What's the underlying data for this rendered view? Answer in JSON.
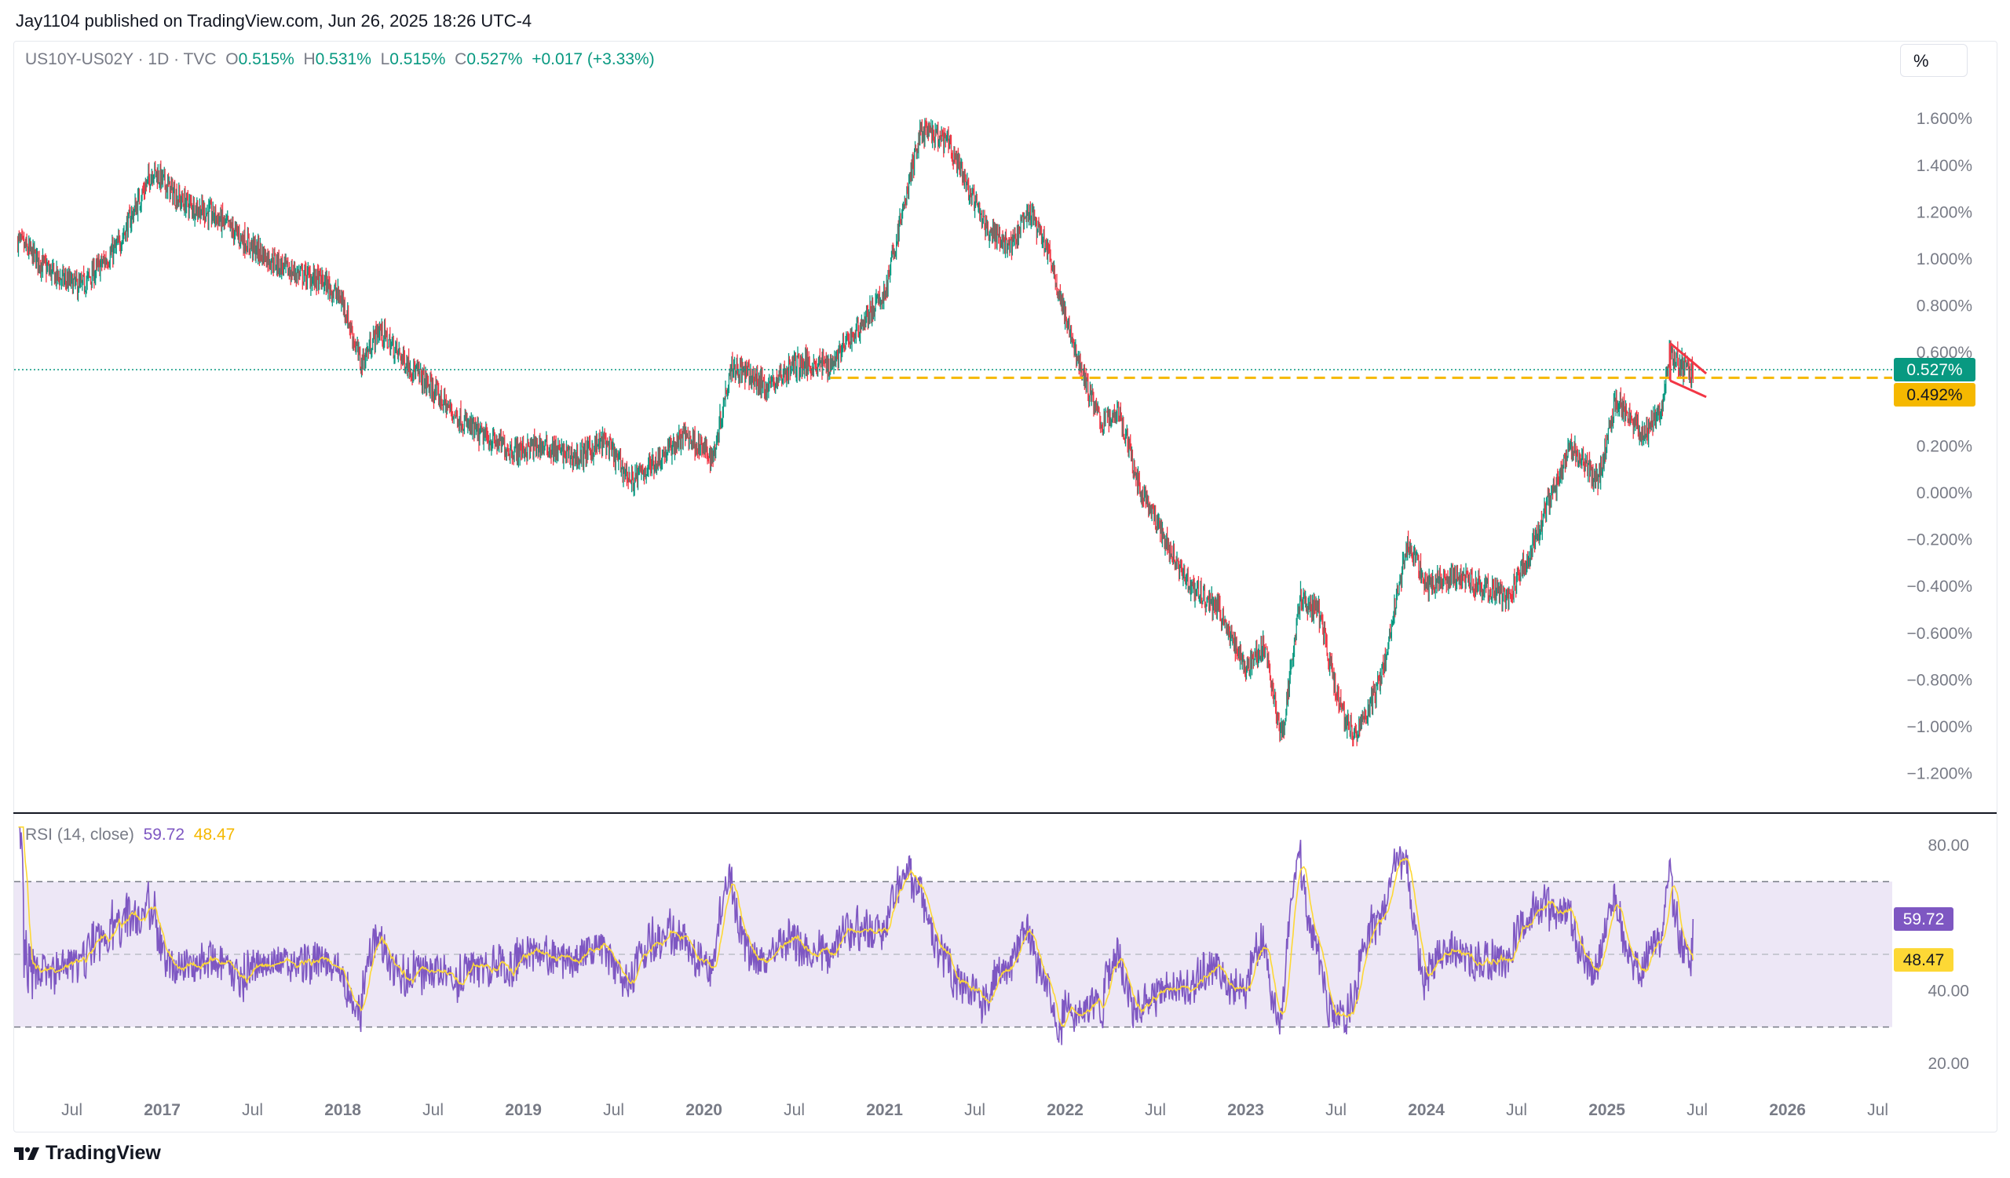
{
  "header": {
    "publisher": "Jay1104 published on TradingView.com, Jun 26, 2025 18:26 UTC-4"
  },
  "legend": {
    "symbol": "US10Y-US02Y · 1D · TVC",
    "o_label": "O",
    "o_value": "0.515%",
    "h_label": "H",
    "h_value": "0.531%",
    "l_label": "L",
    "l_value": "0.515%",
    "c_label": "C",
    "c_value": "0.527%",
    "change": "+0.017 (+3.33%)"
  },
  "scale_button": "%",
  "rsi_legend": {
    "label": "RSI (14, close)",
    "rsi_value": "59.72",
    "ma_value": "48.47"
  },
  "footer": {
    "brand": "TradingView"
  },
  "colors": {
    "up": "#089981",
    "down": "#f23645",
    "rsi": "#7e57c2",
    "rsi_ma": "#fdd835",
    "support": "#f5b800",
    "triangle": "#f23645",
    "rsi_band": "#ede7f6"
  },
  "chart_data": [
    {
      "type": "candlestick",
      "title": "US10Y-US02Y · 1D · TVC",
      "unit": "%",
      "ylim": [
        -1.3,
        1.75
      ],
      "y_ticks": [
        "1.600%",
        "1.400%",
        "1.200%",
        "1.000%",
        "0.800%",
        "0.600%",
        "0.200%",
        "0.000%",
        "−0.200%",
        "−0.400%",
        "−0.600%",
        "−0.800%",
        "−1.000%",
        "−1.200%"
      ],
      "y_tick_values": [
        1.6,
        1.4,
        1.2,
        1.0,
        0.8,
        0.6,
        0.2,
        0.0,
        -0.2,
        -0.4,
        -0.6,
        -0.8,
        -1.0,
        -1.2
      ],
      "x_ticks": [
        {
          "label": "Jul",
          "bold": false,
          "t": 2016.5
        },
        {
          "label": "2017",
          "bold": true,
          "t": 2017.0
        },
        {
          "label": "Jul",
          "bold": false,
          "t": 2017.5
        },
        {
          "label": "2018",
          "bold": true,
          "t": 2018.0
        },
        {
          "label": "Jul",
          "bold": false,
          "t": 2018.5
        },
        {
          "label": "2019",
          "bold": true,
          "t": 2019.0
        },
        {
          "label": "Jul",
          "bold": false,
          "t": 2019.5
        },
        {
          "label": "2020",
          "bold": true,
          "t": 2020.0
        },
        {
          "label": "Jul",
          "bold": false,
          "t": 2020.5
        },
        {
          "label": "2021",
          "bold": true,
          "t": 2021.0
        },
        {
          "label": "Jul",
          "bold": false,
          "t": 2021.5
        },
        {
          "label": "2022",
          "bold": true,
          "t": 2022.0
        },
        {
          "label": "Jul",
          "bold": false,
          "t": 2022.5
        },
        {
          "label": "2023",
          "bold": true,
          "t": 2023.0
        },
        {
          "label": "Jul",
          "bold": false,
          "t": 2023.5
        },
        {
          "label": "2024",
          "bold": true,
          "t": 2024.0
        },
        {
          "label": "Jul",
          "bold": false,
          "t": 2024.5
        },
        {
          "label": "2025",
          "bold": true,
          "t": 2025.0
        },
        {
          "label": "Jul",
          "bold": false,
          "t": 2025.5
        },
        {
          "label": "2026",
          "bold": true,
          "t": 2026.0
        },
        {
          "label": "Jul",
          "bold": false,
          "t": 2026.5
        }
      ],
      "x_range": [
        2016.18,
        2026.58
      ],
      "path_points": [
        [
          2016.2,
          1.08
        ],
        [
          2016.4,
          0.93
        ],
        [
          2016.55,
          0.88
        ],
        [
          2016.75,
          1.05
        ],
        [
          2016.95,
          1.38
        ],
        [
          2017.1,
          1.25
        ],
        [
          2017.3,
          1.18
        ],
        [
          2017.5,
          1.05
        ],
        [
          2017.7,
          0.95
        ],
        [
          2017.9,
          0.9
        ],
        [
          2018.0,
          0.82
        ],
        [
          2018.1,
          0.55
        ],
        [
          2018.2,
          0.7
        ],
        [
          2018.3,
          0.6
        ],
        [
          2018.45,
          0.48
        ],
        [
          2018.6,
          0.35
        ],
        [
          2018.75,
          0.25
        ],
        [
          2018.95,
          0.18
        ],
        [
          2019.1,
          0.2
        ],
        [
          2019.3,
          0.15
        ],
        [
          2019.45,
          0.22
        ],
        [
          2019.6,
          0.05
        ],
        [
          2019.8,
          0.18
        ],
        [
          2019.9,
          0.25
        ],
        [
          2020.05,
          0.15
        ],
        [
          2020.15,
          0.55
        ],
        [
          2020.35,
          0.45
        ],
        [
          2020.5,
          0.55
        ],
        [
          2020.7,
          0.55
        ],
        [
          2020.85,
          0.7
        ],
        [
          2021.0,
          0.85
        ],
        [
          2021.2,
          1.55
        ],
        [
          2021.35,
          1.5
        ],
        [
          2021.55,
          1.15
        ],
        [
          2021.7,
          1.05
        ],
        [
          2021.8,
          1.2
        ],
        [
          2021.9,
          1.05
        ],
        [
          2022.0,
          0.75
        ],
        [
          2022.1,
          0.5
        ],
        [
          2022.2,
          0.3
        ],
        [
          2022.3,
          0.35
        ],
        [
          2022.4,
          0.05
        ],
        [
          2022.55,
          -0.2
        ],
        [
          2022.7,
          -0.4
        ],
        [
          2022.85,
          -0.5
        ],
        [
          2023.0,
          -0.75
        ],
        [
          2023.1,
          -0.65
        ],
        [
          2023.2,
          -1.05
        ],
        [
          2023.3,
          -0.45
        ],
        [
          2023.4,
          -0.5
        ],
        [
          2023.5,
          -0.85
        ],
        [
          2023.6,
          -1.05
        ],
        [
          2023.75,
          -0.8
        ],
        [
          2023.85,
          -0.4
        ],
        [
          2023.9,
          -0.2
        ],
        [
          2024.0,
          -0.4
        ],
        [
          2024.15,
          -0.35
        ],
        [
          2024.3,
          -0.4
        ],
        [
          2024.45,
          -0.45
        ],
        [
          2024.55,
          -0.3
        ],
        [
          2024.7,
          0.0
        ],
        [
          2024.8,
          0.2
        ],
        [
          2024.95,
          0.05
        ],
        [
          2025.05,
          0.4
        ],
        [
          2025.2,
          0.25
        ],
        [
          2025.3,
          0.35
        ],
        [
          2025.35,
          0.6
        ],
        [
          2025.45,
          0.52
        ],
        [
          2025.48,
          0.527
        ]
      ],
      "reference_lines": [
        {
          "label": "0.527%",
          "value": 0.527,
          "style": "dotted",
          "color": "#089981"
        },
        {
          "label": "0.492%",
          "value": 0.492,
          "style": "dashed",
          "color": "#f5b800",
          "from": 2020.7
        }
      ],
      "triangle_pattern": {
        "upper": [
          [
            2025.35,
            0.64
          ],
          [
            2025.55,
            0.51
          ]
        ],
        "lower": [
          [
            2025.35,
            0.48
          ],
          [
            2025.55,
            0.41
          ]
        ]
      }
    },
    {
      "type": "line",
      "title": "RSI (14, close)",
      "ylim": [
        15,
        85
      ],
      "y_ticks": [
        "80.00",
        "40.00",
        "20.00"
      ],
      "y_tick_values": [
        80,
        40,
        20
      ],
      "bands": {
        "upper": 70,
        "middle": 50,
        "lower": 30
      },
      "series": [
        {
          "name": "RSI",
          "last": 59.72,
          "color": "#7e57c2"
        },
        {
          "name": "RSI-based MA",
          "last": 48.47,
          "color": "#fdd835"
        }
      ],
      "tags": [
        {
          "label": "59.72",
          "value": 59.72,
          "color": "#7e57c2"
        },
        {
          "label": "48.47",
          "value": 48.47,
          "color": "#fdd835"
        }
      ]
    }
  ]
}
